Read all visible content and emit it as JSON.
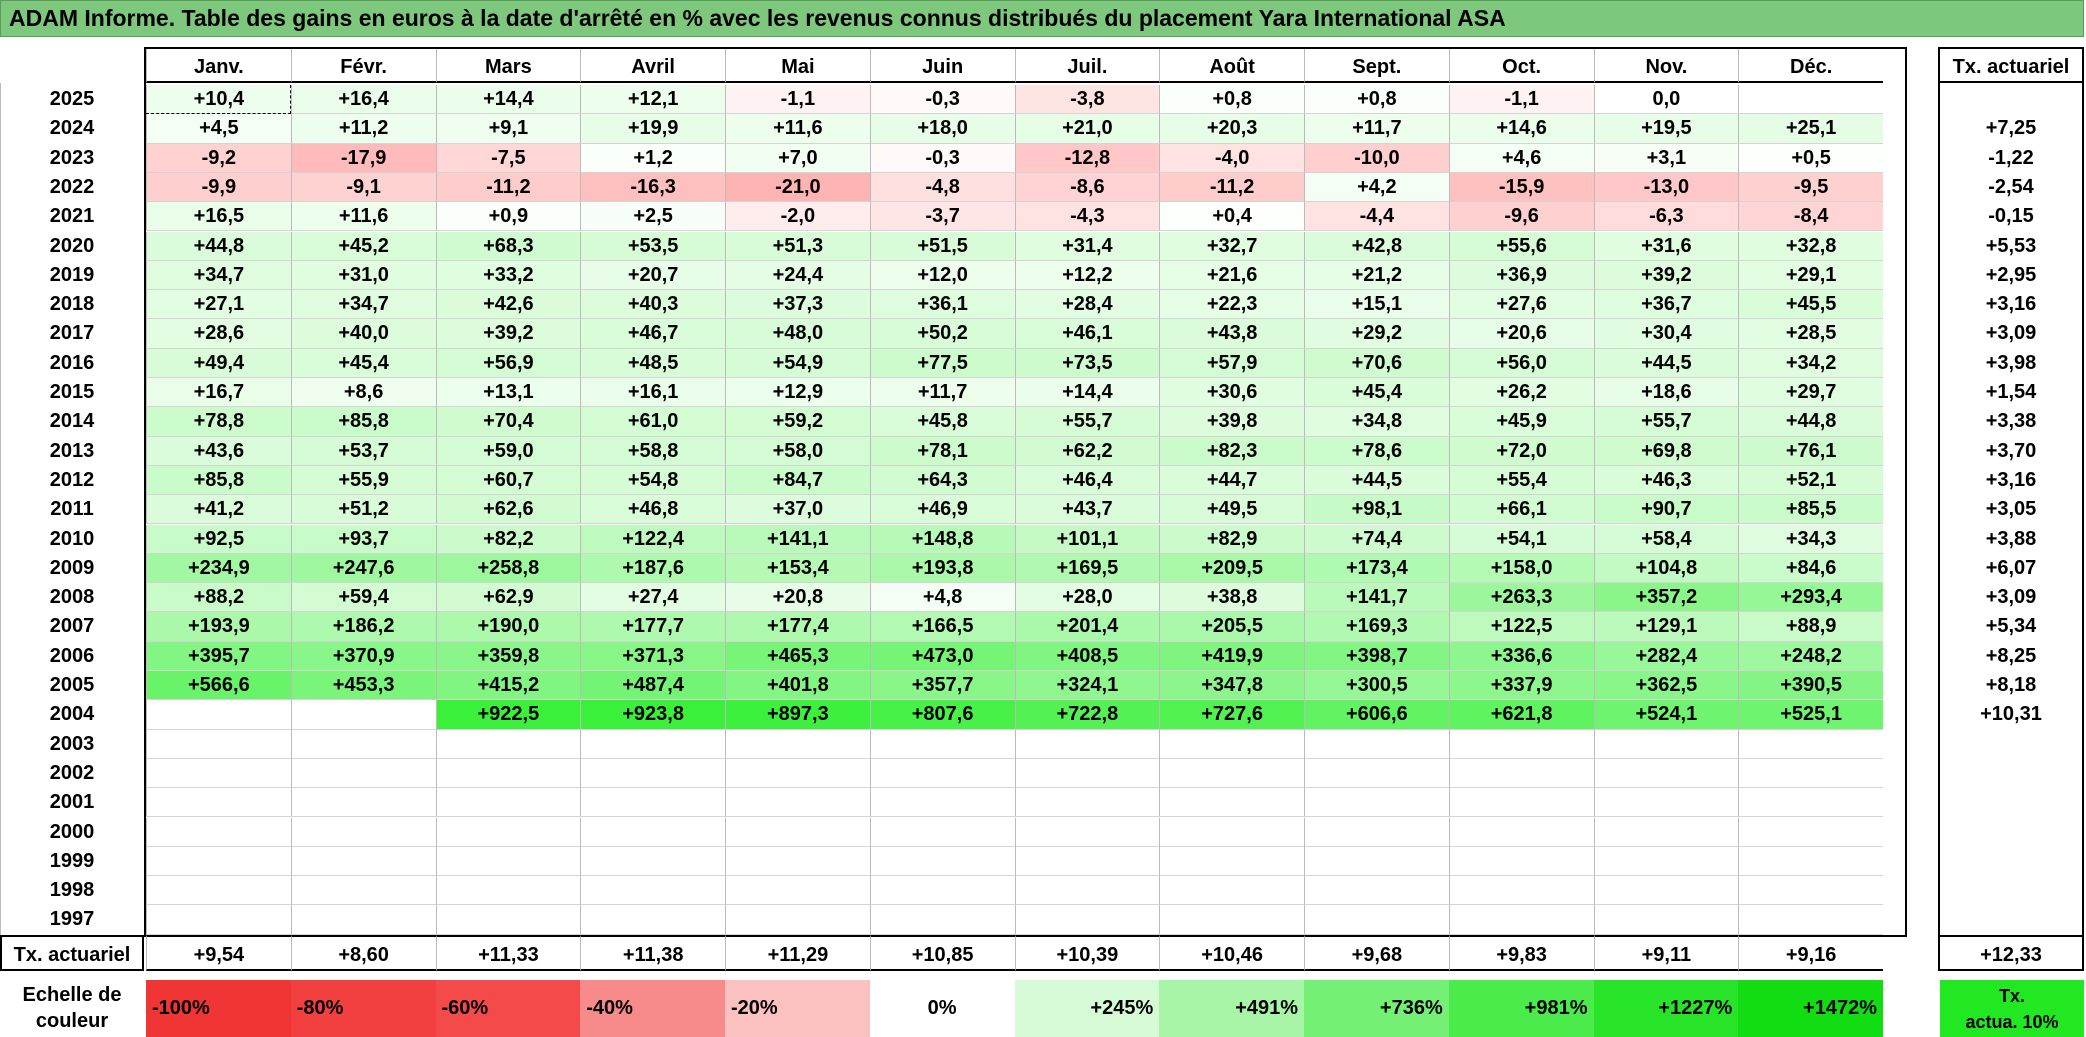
{
  "title": "ADAM Informe. Table des gains en euros à la date d'arrêté en % avec les revenus connus distribués du placement Yara International ASA",
  "months": [
    "Janv.",
    "Févr.",
    "Mars",
    "Avril",
    "Mai",
    "Juin",
    "Juil.",
    "Août",
    "Sept.",
    "Oct.",
    "Nov.",
    "Déc."
  ],
  "tx_header": "Tx. actuariel",
  "rows": [
    {
      "year": "2025",
      "values": [
        "+10,4",
        "+16,4",
        "+14,4",
        "+12,1",
        "-1,1",
        "-0,3",
        "-3,8",
        "+0,8",
        "+0,8",
        "-1,1",
        "0,0",
        ""
      ],
      "tx": ""
    },
    {
      "year": "2024",
      "values": [
        "+4,5",
        "+11,2",
        "+9,1",
        "+19,9",
        "+11,6",
        "+18,0",
        "+21,0",
        "+20,3",
        "+11,7",
        "+14,6",
        "+19,5",
        "+25,1"
      ],
      "tx": "+7,25"
    },
    {
      "year": "2023",
      "values": [
        "-9,2",
        "-17,9",
        "-7,5",
        "+1,2",
        "+7,0",
        "-0,3",
        "-12,8",
        "-4,0",
        "-10,0",
        "+4,6",
        "+3,1",
        "+0,5"
      ],
      "tx": "-1,22"
    },
    {
      "year": "2022",
      "values": [
        "-9,9",
        "-9,1",
        "-11,2",
        "-16,3",
        "-21,0",
        "-4,8",
        "-8,6",
        "-11,2",
        "+4,2",
        "-15,9",
        "-13,0",
        "-9,5"
      ],
      "tx": "-2,54"
    },
    {
      "year": "2021",
      "values": [
        "+16,5",
        "+11,6",
        "+0,9",
        "+2,5",
        "-2,0",
        "-3,7",
        "-4,3",
        "+0,4",
        "-4,4",
        "-9,6",
        "-6,3",
        "-8,4"
      ],
      "tx": "-0,15"
    },
    {
      "year": "2020",
      "values": [
        "+44,8",
        "+45,2",
        "+68,3",
        "+53,5",
        "+51,3",
        "+51,5",
        "+31,4",
        "+32,7",
        "+42,8",
        "+55,6",
        "+31,6",
        "+32,8"
      ],
      "tx": "+5,53"
    },
    {
      "year": "2019",
      "values": [
        "+34,7",
        "+31,0",
        "+33,2",
        "+20,7",
        "+24,4",
        "+12,0",
        "+12,2",
        "+21,6",
        "+21,2",
        "+36,9",
        "+39,2",
        "+29,1"
      ],
      "tx": "+2,95"
    },
    {
      "year": "2018",
      "values": [
        "+27,1",
        "+34,7",
        "+42,6",
        "+40,3",
        "+37,3",
        "+36,1",
        "+28,4",
        "+22,3",
        "+15,1",
        "+27,6",
        "+36,7",
        "+45,5"
      ],
      "tx": "+3,16"
    },
    {
      "year": "2017",
      "values": [
        "+28,6",
        "+40,0",
        "+39,2",
        "+46,7",
        "+48,0",
        "+50,2",
        "+46,1",
        "+43,8",
        "+29,2",
        "+20,6",
        "+30,4",
        "+28,5"
      ],
      "tx": "+3,09"
    },
    {
      "year": "2016",
      "values": [
        "+49,4",
        "+45,4",
        "+56,9",
        "+48,5",
        "+54,9",
        "+77,5",
        "+73,5",
        "+57,9",
        "+70,6",
        "+56,0",
        "+44,5",
        "+34,2"
      ],
      "tx": "+3,98"
    },
    {
      "year": "2015",
      "values": [
        "+16,7",
        "+8,6",
        "+13,1",
        "+16,1",
        "+12,9",
        "+11,7",
        "+14,4",
        "+30,6",
        "+45,4",
        "+26,2",
        "+18,6",
        "+29,7"
      ],
      "tx": "+1,54"
    },
    {
      "year": "2014",
      "values": [
        "+78,8",
        "+85,8",
        "+70,4",
        "+61,0",
        "+59,2",
        "+45,8",
        "+55,7",
        "+39,8",
        "+34,8",
        "+45,9",
        "+55,7",
        "+44,8"
      ],
      "tx": "+3,38"
    },
    {
      "year": "2013",
      "values": [
        "+43,6",
        "+53,7",
        "+59,0",
        "+58,8",
        "+58,0",
        "+78,1",
        "+62,2",
        "+82,3",
        "+78,6",
        "+72,0",
        "+69,8",
        "+76,1"
      ],
      "tx": "+3,70"
    },
    {
      "year": "2012",
      "values": [
        "+85,8",
        "+55,9",
        "+60,7",
        "+54,8",
        "+84,7",
        "+64,3",
        "+46,4",
        "+44,7",
        "+44,5",
        "+55,4",
        "+46,3",
        "+52,1"
      ],
      "tx": "+3,16"
    },
    {
      "year": "2011",
      "values": [
        "+41,2",
        "+51,2",
        "+62,6",
        "+46,8",
        "+37,0",
        "+46,9",
        "+43,7",
        "+49,5",
        "+98,1",
        "+66,1",
        "+90,7",
        "+85,5"
      ],
      "tx": "+3,05"
    },
    {
      "year": "2010",
      "values": [
        "+92,5",
        "+93,7",
        "+82,2",
        "+122,4",
        "+141,1",
        "+148,8",
        "+101,1",
        "+82,9",
        "+74,4",
        "+54,1",
        "+58,4",
        "+34,3"
      ],
      "tx": "+3,88"
    },
    {
      "year": "2009",
      "values": [
        "+234,9",
        "+247,6",
        "+258,8",
        "+187,6",
        "+153,4",
        "+193,8",
        "+169,5",
        "+209,5",
        "+173,4",
        "+158,0",
        "+104,8",
        "+84,6"
      ],
      "tx": "+6,07"
    },
    {
      "year": "2008",
      "values": [
        "+88,2",
        "+59,4",
        "+62,9",
        "+27,4",
        "+20,8",
        "+4,8",
        "+28,0",
        "+38,8",
        "+141,7",
        "+263,3",
        "+357,2",
        "+293,4"
      ],
      "tx": "+3,09"
    },
    {
      "year": "2007",
      "values": [
        "+193,9",
        "+186,2",
        "+190,0",
        "+177,7",
        "+177,4",
        "+166,5",
        "+201,4",
        "+205,5",
        "+169,3",
        "+122,5",
        "+129,1",
        "+88,9"
      ],
      "tx": "+5,34"
    },
    {
      "year": "2006",
      "values": [
        "+395,7",
        "+370,9",
        "+359,8",
        "+371,3",
        "+465,3",
        "+473,0",
        "+408,5",
        "+419,9",
        "+398,7",
        "+336,6",
        "+282,4",
        "+248,2"
      ],
      "tx": "+8,25"
    },
    {
      "year": "2005",
      "values": [
        "+566,6",
        "+453,3",
        "+415,2",
        "+487,4",
        "+401,8",
        "+357,7",
        "+324,1",
        "+347,8",
        "+300,5",
        "+337,9",
        "+362,5",
        "+390,5"
      ],
      "tx": "+8,18"
    },
    {
      "year": "2004",
      "values": [
        "",
        "",
        "+922,5",
        "+923,8",
        "+897,3",
        "+807,6",
        "+722,8",
        "+727,6",
        "+606,6",
        "+621,8",
        "+524,1",
        "+525,1"
      ],
      "tx": "+10,31"
    },
    {
      "year": "2003",
      "values": [
        "",
        "",
        "",
        "",
        "",
        "",
        "",
        "",
        "",
        "",
        "",
        ""
      ],
      "tx": ""
    },
    {
      "year": "2002",
      "values": [
        "",
        "",
        "",
        "",
        "",
        "",
        "",
        "",
        "",
        "",
        "",
        ""
      ],
      "tx": ""
    },
    {
      "year": "2001",
      "values": [
        "",
        "",
        "",
        "",
        "",
        "",
        "",
        "",
        "",
        "",
        "",
        ""
      ],
      "tx": ""
    },
    {
      "year": "2000",
      "values": [
        "",
        "",
        "",
        "",
        "",
        "",
        "",
        "",
        "",
        "",
        "",
        ""
      ],
      "tx": ""
    },
    {
      "year": "1999",
      "values": [
        "",
        "",
        "",
        "",
        "",
        "",
        "",
        "",
        "",
        "",
        "",
        ""
      ],
      "tx": ""
    },
    {
      "year": "1998",
      "values": [
        "",
        "",
        "",
        "",
        "",
        "",
        "",
        "",
        "",
        "",
        "",
        ""
      ],
      "tx": ""
    },
    {
      "year": "1997",
      "values": [
        "",
        "",
        "",
        "",
        "",
        "",
        "",
        "",
        "",
        "",
        "",
        ""
      ],
      "tx": ""
    }
  ],
  "footer": {
    "label": "Tx. actuariel",
    "values": [
      "+9,54",
      "+8,60",
      "+11,33",
      "+11,38",
      "+11,29",
      "+10,85",
      "+10,39",
      "+10,46",
      "+9,68",
      "+9,83",
      "+9,11",
      "+9,16"
    ],
    "total": "+12,33"
  },
  "scale": {
    "label_line1": "Echelle de",
    "label_line2": "couleur",
    "items": [
      {
        "label": "-100%",
        "color": "#f03535",
        "align": "left"
      },
      {
        "label": "-80%",
        "color": "#f24040",
        "align": "left"
      },
      {
        "label": "-60%",
        "color": "#f44a4a",
        "align": "left"
      },
      {
        "label": "-40%",
        "color": "#f78a8a",
        "align": "left"
      },
      {
        "label": "-20%",
        "color": "#fbc0c0",
        "align": "left"
      },
      {
        "label": "0%",
        "color": "#ffffff",
        "align": "center"
      },
      {
        "label": "+245%",
        "color": "#d6fad6",
        "align": "right"
      },
      {
        "label": "+491%",
        "color": "#a8f5a8",
        "align": "right"
      },
      {
        "label": "+736%",
        "color": "#74f074",
        "align": "right"
      },
      {
        "label": "+981%",
        "color": "#4aeb4a",
        "align": "right"
      },
      {
        "label": "+1227%",
        "color": "#28e428",
        "align": "right"
      },
      {
        "label": "+1472%",
        "color": "#12dd12",
        "align": "right"
      }
    ],
    "tx_line1": "Tx.",
    "tx_line2": "actua. 10%"
  }
}
